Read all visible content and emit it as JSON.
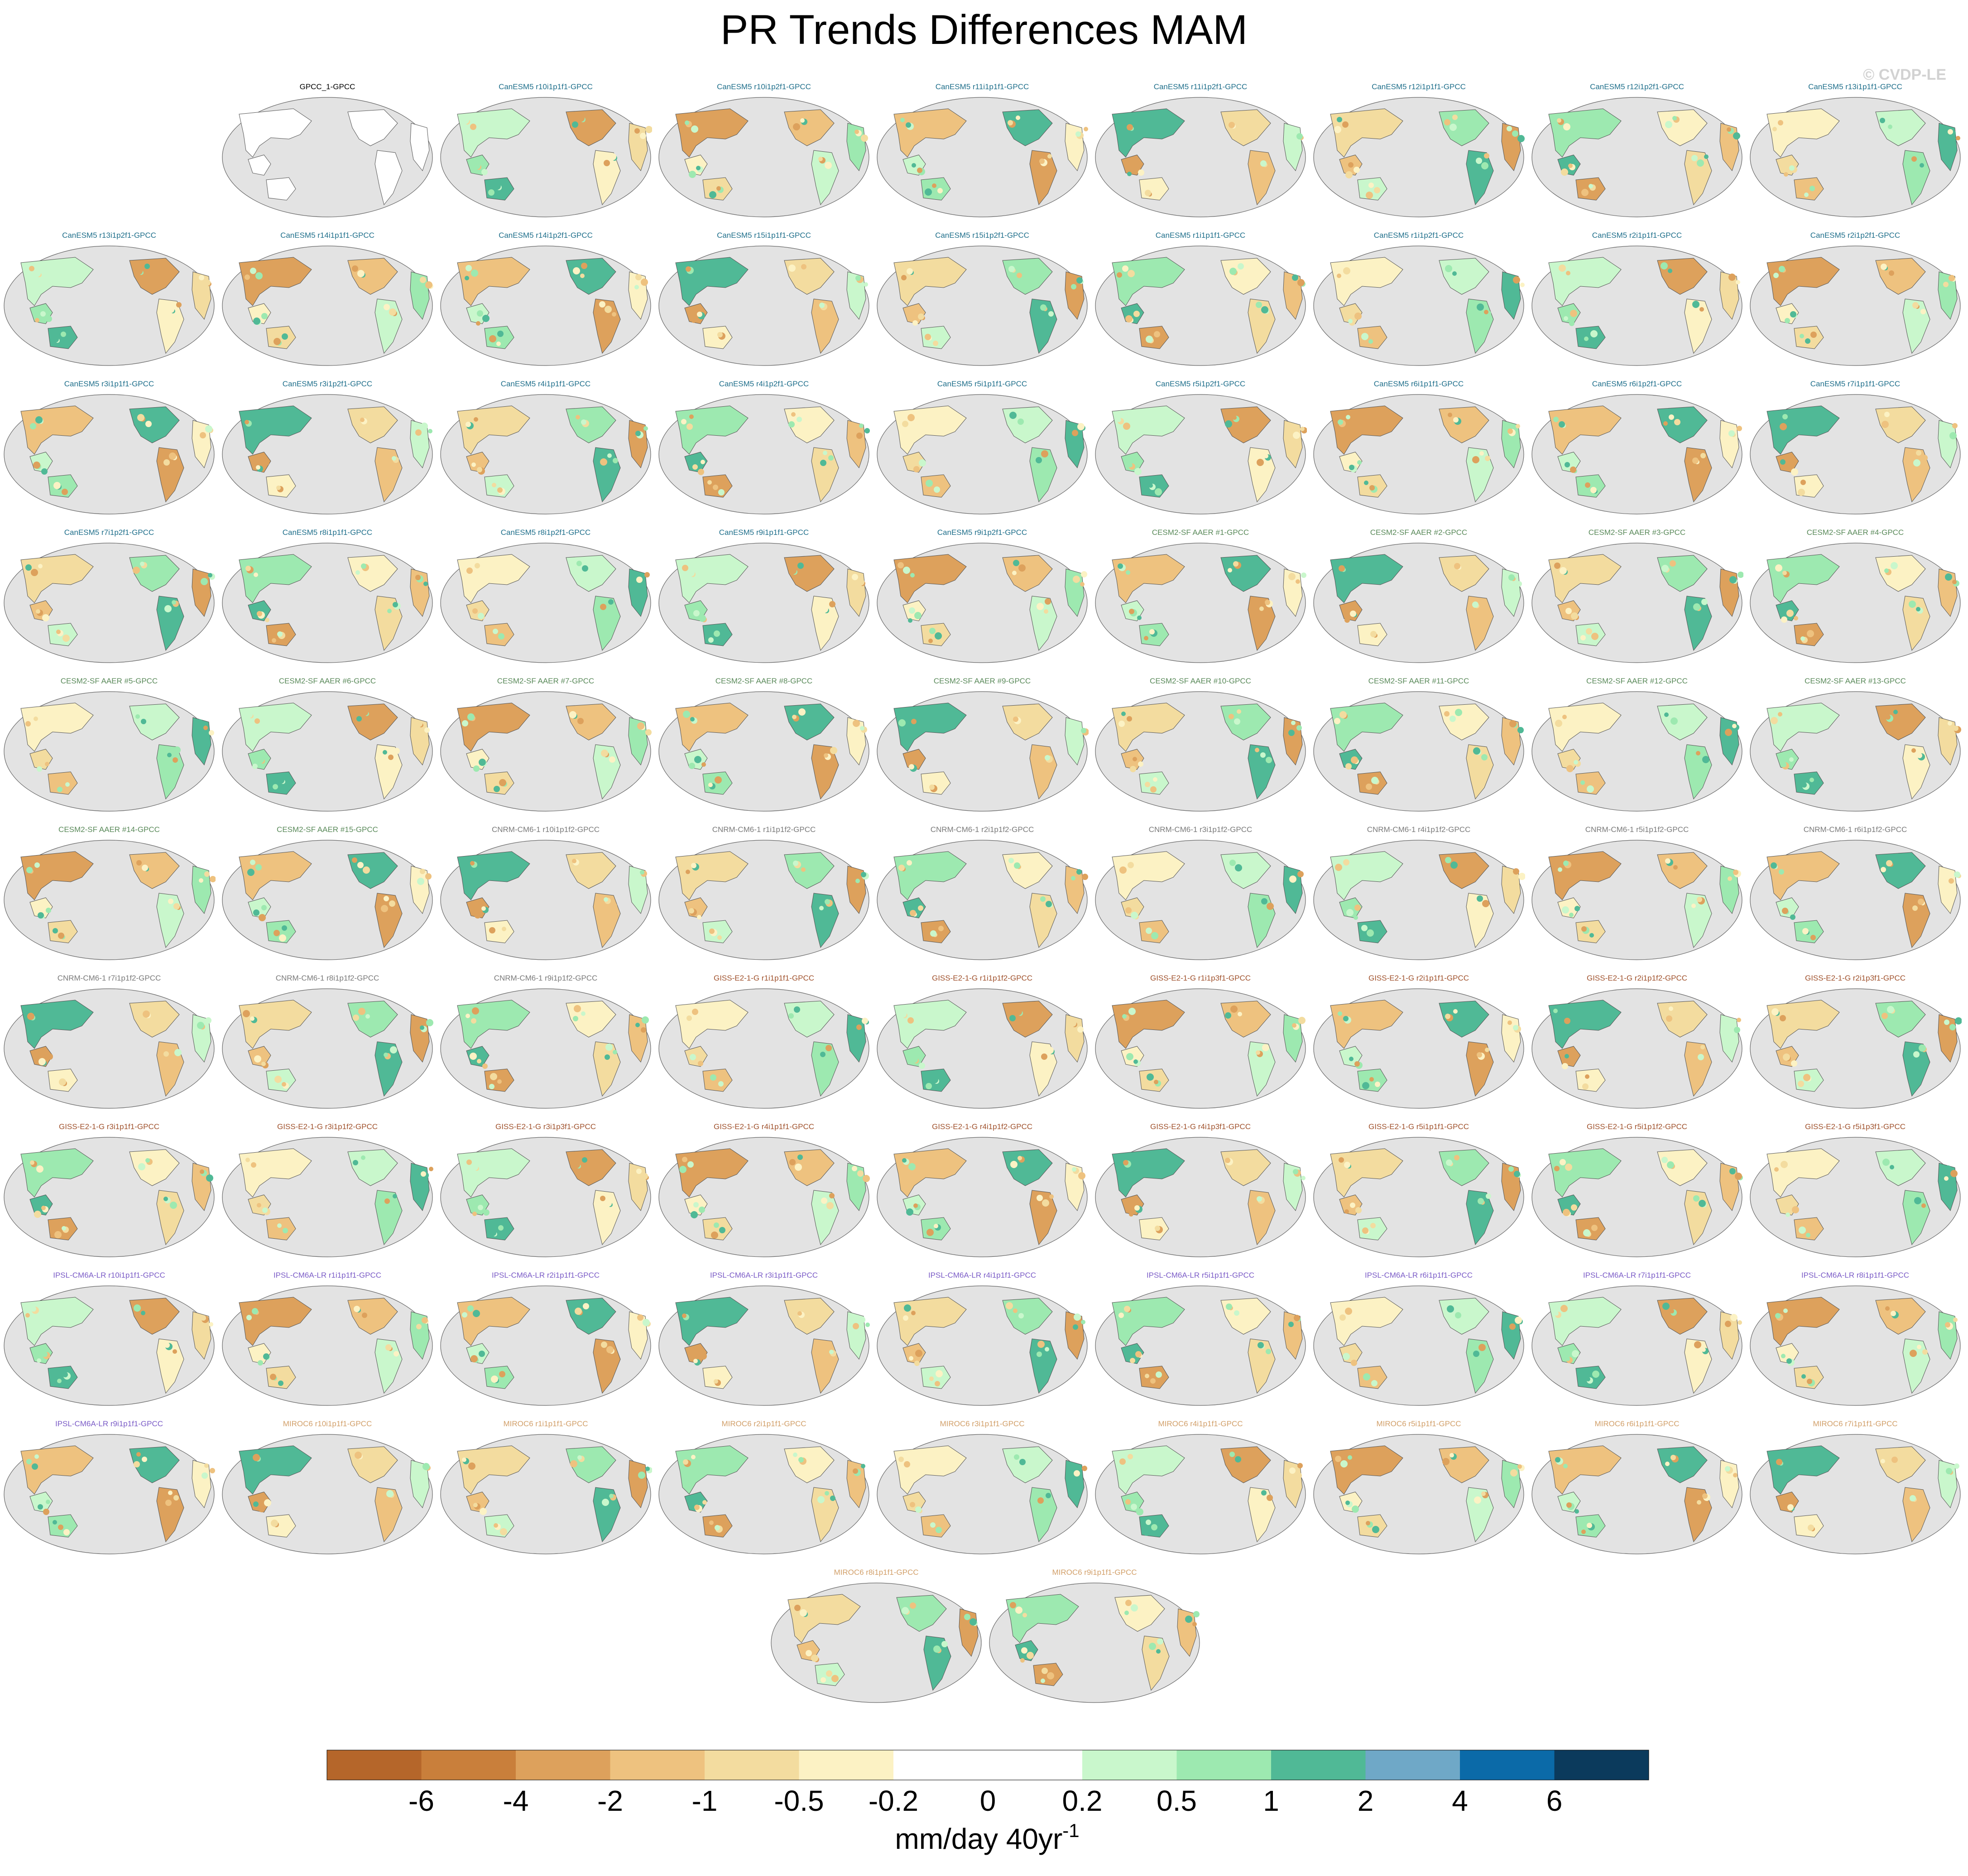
{
  "title": "PR Trends Differences MAM",
  "copyright": "© CVDP-LE",
  "chart_data": {
    "type": "heatmap",
    "title": "PR Trends Differences MAM",
    "projection": "global map panels, ocean masked grey, land shaded by trend difference",
    "panels": [
      {
        "label": "GPCC_1-GPCC",
        "group": "obs"
      },
      {
        "label": "CanESM5 r10i1p1f1-GPCC",
        "group": "CanESM5"
      },
      {
        "label": "CanESM5 r10i1p2f1-GPCC",
        "group": "CanESM5"
      },
      {
        "label": "CanESM5 r11i1p1f1-GPCC",
        "group": "CanESM5"
      },
      {
        "label": "CanESM5 r11i1p2f1-GPCC",
        "group": "CanESM5"
      },
      {
        "label": "CanESM5 r12i1p1f1-GPCC",
        "group": "CanESM5"
      },
      {
        "label": "CanESM5 r12i1p2f1-GPCC",
        "group": "CanESM5"
      },
      {
        "label": "CanESM5 r13i1p1f1-GPCC",
        "group": "CanESM5"
      },
      {
        "label": "CanESM5 r13i1p2f1-GPCC",
        "group": "CanESM5"
      },
      {
        "label": "CanESM5 r14i1p1f1-GPCC",
        "group": "CanESM5"
      },
      {
        "label": "CanESM5 r14i1p2f1-GPCC",
        "group": "CanESM5"
      },
      {
        "label": "CanESM5 r15i1p1f1-GPCC",
        "group": "CanESM5"
      },
      {
        "label": "CanESM5 r15i1p2f1-GPCC",
        "group": "CanESM5"
      },
      {
        "label": "CanESM5 r1i1p1f1-GPCC",
        "group": "CanESM5"
      },
      {
        "label": "CanESM5 r1i1p2f1-GPCC",
        "group": "CanESM5"
      },
      {
        "label": "CanESM5 r2i1p1f1-GPCC",
        "group": "CanESM5"
      },
      {
        "label": "CanESM5 r2i1p2f1-GPCC",
        "group": "CanESM5"
      },
      {
        "label": "CanESM5 r3i1p1f1-GPCC",
        "group": "CanESM5"
      },
      {
        "label": "CanESM5 r3i1p2f1-GPCC",
        "group": "CanESM5"
      },
      {
        "label": "CanESM5 r4i1p1f1-GPCC",
        "group": "CanESM5"
      },
      {
        "label": "CanESM5 r4i1p2f1-GPCC",
        "group": "CanESM5"
      },
      {
        "label": "CanESM5 r5i1p1f1-GPCC",
        "group": "CanESM5"
      },
      {
        "label": "CanESM5 r5i1p2f1-GPCC",
        "group": "CanESM5"
      },
      {
        "label": "CanESM5 r6i1p1f1-GPCC",
        "group": "CanESM5"
      },
      {
        "label": "CanESM5 r6i1p2f1-GPCC",
        "group": "CanESM5"
      },
      {
        "label": "CanESM5 r7i1p1f1-GPCC",
        "group": "CanESM5"
      },
      {
        "label": "CanESM5 r7i1p2f1-GPCC",
        "group": "CanESM5"
      },
      {
        "label": "CanESM5 r8i1p1f1-GPCC",
        "group": "CanESM5"
      },
      {
        "label": "CanESM5 r8i1p2f1-GPCC",
        "group": "CanESM5"
      },
      {
        "label": "CanESM5 r9i1p1f1-GPCC",
        "group": "CanESM5"
      },
      {
        "label": "CanESM5 r9i1p2f1-GPCC",
        "group": "CanESM5"
      },
      {
        "label": "CESM2-SF AAER #1-GPCC",
        "group": "CESM2"
      },
      {
        "label": "CESM2-SF AAER #2-GPCC",
        "group": "CESM2"
      },
      {
        "label": "CESM2-SF AAER #3-GPCC",
        "group": "CESM2"
      },
      {
        "label": "CESM2-SF AAER #4-GPCC",
        "group": "CESM2"
      },
      {
        "label": "CESM2-SF AAER #5-GPCC",
        "group": "CESM2"
      },
      {
        "label": "CESM2-SF AAER #6-GPCC",
        "group": "CESM2"
      },
      {
        "label": "CESM2-SF AAER #7-GPCC",
        "group": "CESM2"
      },
      {
        "label": "CESM2-SF AAER #8-GPCC",
        "group": "CESM2"
      },
      {
        "label": "CESM2-SF AAER #9-GPCC",
        "group": "CESM2"
      },
      {
        "label": "CESM2-SF AAER #10-GPCC",
        "group": "CESM2"
      },
      {
        "label": "CESM2-SF AAER #11-GPCC",
        "group": "CESM2"
      },
      {
        "label": "CESM2-SF AAER #12-GPCC",
        "group": "CESM2"
      },
      {
        "label": "CESM2-SF AAER #13-GPCC",
        "group": "CESM2"
      },
      {
        "label": "CESM2-SF AAER #14-GPCC",
        "group": "CESM2"
      },
      {
        "label": "CESM2-SF AAER #15-GPCC",
        "group": "CESM2"
      },
      {
        "label": "CNRM-CM6-1 r10i1p1f2-GPCC",
        "group": "CNRM"
      },
      {
        "label": "CNRM-CM6-1 r1i1p1f2-GPCC",
        "group": "CNRM"
      },
      {
        "label": "CNRM-CM6-1 r2i1p1f2-GPCC",
        "group": "CNRM"
      },
      {
        "label": "CNRM-CM6-1 r3i1p1f2-GPCC",
        "group": "CNRM"
      },
      {
        "label": "CNRM-CM6-1 r4i1p1f2-GPCC",
        "group": "CNRM"
      },
      {
        "label": "CNRM-CM6-1 r5i1p1f2-GPCC",
        "group": "CNRM"
      },
      {
        "label": "CNRM-CM6-1 r6i1p1f2-GPCC",
        "group": "CNRM"
      },
      {
        "label": "CNRM-CM6-1 r7i1p1f2-GPCC",
        "group": "CNRM"
      },
      {
        "label": "CNRM-CM6-1 r8i1p1f2-GPCC",
        "group": "CNRM"
      },
      {
        "label": "CNRM-CM6-1 r9i1p1f2-GPCC",
        "group": "CNRM"
      },
      {
        "label": "GISS-E2-1-G r1i1p1f1-GPCC",
        "group": "GISS"
      },
      {
        "label": "GISS-E2-1-G r1i1p1f2-GPCC",
        "group": "GISS"
      },
      {
        "label": "GISS-E2-1-G r1i1p3f1-GPCC",
        "group": "GISS"
      },
      {
        "label": "GISS-E2-1-G r2i1p1f1-GPCC",
        "group": "GISS"
      },
      {
        "label": "GISS-E2-1-G r2i1p1f2-GPCC",
        "group": "GISS"
      },
      {
        "label": "GISS-E2-1-G r2i1p3f1-GPCC",
        "group": "GISS"
      },
      {
        "label": "GISS-E2-1-G r3i1p1f1-GPCC",
        "group": "GISS"
      },
      {
        "label": "GISS-E2-1-G r3i1p1f2-GPCC",
        "group": "GISS"
      },
      {
        "label": "GISS-E2-1-G r3i1p3f1-GPCC",
        "group": "GISS"
      },
      {
        "label": "GISS-E2-1-G r4i1p1f1-GPCC",
        "group": "GISS"
      },
      {
        "label": "GISS-E2-1-G r4i1p1f2-GPCC",
        "group": "GISS"
      },
      {
        "label": "GISS-E2-1-G r4i1p3f1-GPCC",
        "group": "GISS"
      },
      {
        "label": "GISS-E2-1-G r5i1p1f1-GPCC",
        "group": "GISS"
      },
      {
        "label": "GISS-E2-1-G r5i1p1f2-GPCC",
        "group": "GISS"
      },
      {
        "label": "GISS-E2-1-G r5i1p3f1-GPCC",
        "group": "GISS"
      },
      {
        "label": "IPSL-CM6A-LR r10i1p1f1-GPCC",
        "group": "IPSL"
      },
      {
        "label": "IPSL-CM6A-LR r1i1p1f1-GPCC",
        "group": "IPSL"
      },
      {
        "label": "IPSL-CM6A-LR r2i1p1f1-GPCC",
        "group": "IPSL"
      },
      {
        "label": "IPSL-CM6A-LR r3i1p1f1-GPCC",
        "group": "IPSL"
      },
      {
        "label": "IPSL-CM6A-LR r4i1p1f1-GPCC",
        "group": "IPSL"
      },
      {
        "label": "IPSL-CM6A-LR r5i1p1f1-GPCC",
        "group": "IPSL"
      },
      {
        "label": "IPSL-CM6A-LR r6i1p1f1-GPCC",
        "group": "IPSL"
      },
      {
        "label": "IPSL-CM6A-LR r7i1p1f1-GPCC",
        "group": "IPSL"
      },
      {
        "label": "IPSL-CM6A-LR r8i1p1f1-GPCC",
        "group": "IPSL"
      },
      {
        "label": "IPSL-CM6A-LR r9i1p1f1-GPCC",
        "group": "IPSL"
      },
      {
        "label": "MIROC6 r10i1p1f1-GPCC",
        "group": "MIROC6"
      },
      {
        "label": "MIROC6 r1i1p1f1-GPCC",
        "group": "MIROC6"
      },
      {
        "label": "MIROC6 r2i1p1f1-GPCC",
        "group": "MIROC6"
      },
      {
        "label": "MIROC6 r3i1p1f1-GPCC",
        "group": "MIROC6"
      },
      {
        "label": "MIROC6 r4i1p1f1-GPCC",
        "group": "MIROC6"
      },
      {
        "label": "MIROC6 r5i1p1f1-GPCC",
        "group": "MIROC6"
      },
      {
        "label": "MIROC6 r6i1p1f1-GPCC",
        "group": "MIROC6"
      },
      {
        "label": "MIROC6 r7i1p1f1-GPCC",
        "group": "MIROC6"
      },
      {
        "label": "MIROC6 r8i1p1f1-GPCC",
        "group": "MIROC6"
      },
      {
        "label": "MIROC6 r9i1p1f1-GPCC",
        "group": "MIROC6"
      }
    ],
    "group_colors": {
      "obs": "#000000",
      "CanESM5": "#1f6f8b",
      "CESM2": "#5a8a5a",
      "CNRM": "#7a7a7a",
      "GISS": "#a0522d",
      "IPSL": "#7b5cc7",
      "MIROC6": "#d2a06a"
    },
    "map_colors": {
      "ocean": "#e3e3e3",
      "land": "#ffffff",
      "coastline": "#555555"
    },
    "colorbar": {
      "levels": [
        "-6",
        "-4",
        "-2",
        "-1",
        "-0.5",
        "-0.2",
        "0",
        "0.2",
        "0.5",
        "1",
        "2",
        "4",
        "6"
      ],
      "colors": [
        "#b5662a",
        "#c97f3b",
        "#dda15c",
        "#eec27f",
        "#f3dc9f",
        "#fcf2c4",
        "#ffffff",
        "#ffffff",
        "#c9f7cc",
        "#9de9b0",
        "#50b996",
        "#6fa8c7",
        "#0b6aa8",
        "#0b3a5c"
      ],
      "units_base": "mm/day 40yr",
      "units_exponent": "-1"
    }
  }
}
